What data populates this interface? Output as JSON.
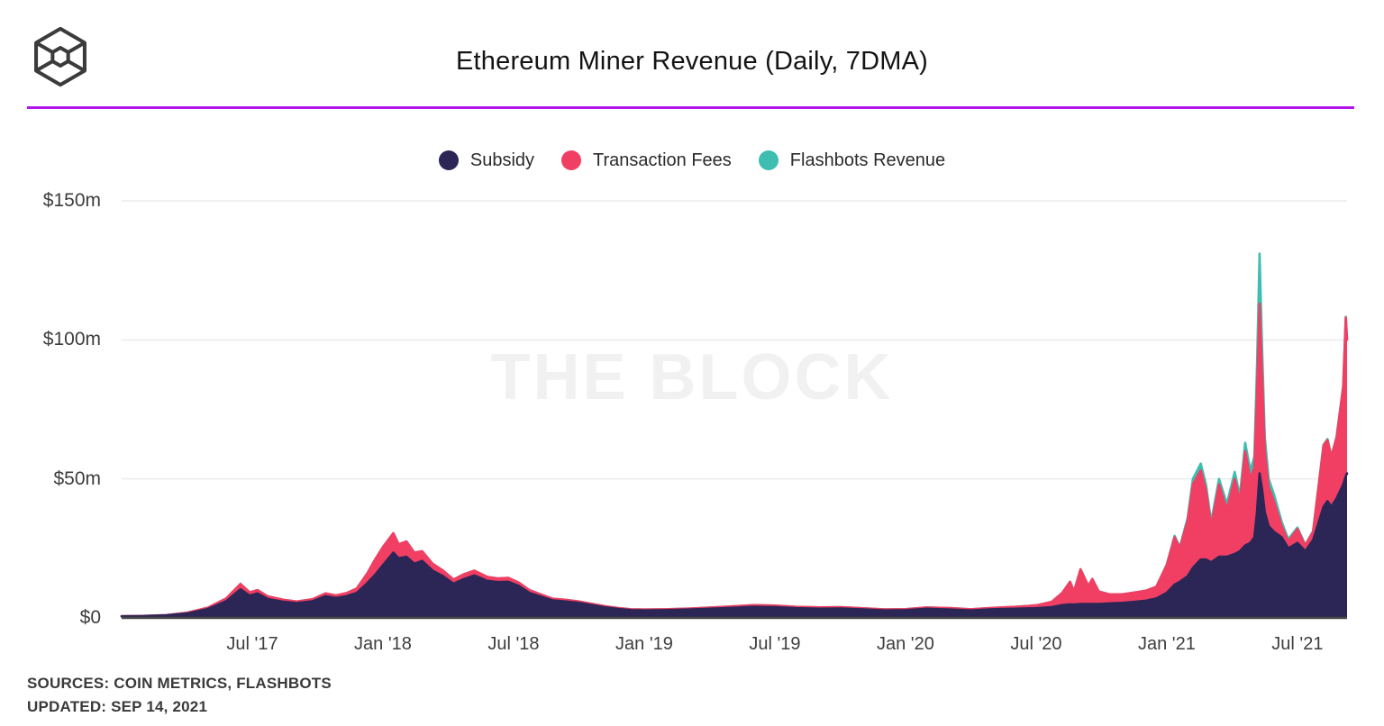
{
  "header": {
    "title": "Ethereum Miner Revenue (Daily, 7DMA)",
    "logo_icon": "the-block-cube-logo",
    "accent_color": "#b316eb"
  },
  "legend": {
    "items": [
      {
        "label": "Subsidy",
        "color": "#2c2657"
      },
      {
        "label": "Transaction Fees",
        "color": "#f13f63"
      },
      {
        "label": "Flashbots Revenue",
        "color": "#3ebdb1"
      }
    ]
  },
  "watermark": "THE BLOCK",
  "footer": {
    "sources": "SOURCES: COIN METRICS, FLASHBOTS",
    "updated": "UPDATED: SEP 14, 2021"
  },
  "chart_data": {
    "type": "area",
    "stacked": true,
    "title": "Ethereum Miner Revenue (Daily, 7DMA)",
    "units": "$m (USD millions per day)",
    "grid": "horizontal",
    "legend_position": "top-center",
    "ylim": [
      0,
      150
    ],
    "y_ticks": [
      {
        "label": "$150m",
        "value": 150
      },
      {
        "label": "$100m",
        "value": 100
      },
      {
        "label": "$50m",
        "value": 50
      },
      {
        "label": "$0",
        "value": 0
      }
    ],
    "x_ticks": [
      {
        "label": "Jul '17",
        "value": 2017.5
      },
      {
        "label": "Jan '18",
        "value": 2018.0
      },
      {
        "label": "Jul '18",
        "value": 2018.5
      },
      {
        "label": "Jan '19",
        "value": 2019.0
      },
      {
        "label": "Jul '19",
        "value": 2019.5
      },
      {
        "label": "Jan '20",
        "value": 2020.0
      },
      {
        "label": "Jul '20",
        "value": 2020.5
      },
      {
        "label": "Jan '21",
        "value": 2021.0
      },
      {
        "label": "Jul '21",
        "value": 2021.5
      }
    ],
    "xlim": [
      2017.0,
      2021.69
    ],
    "x": [
      2017.0,
      2017.08,
      2017.17,
      2017.25,
      2017.33,
      2017.4,
      2017.455,
      2017.49,
      2017.52,
      2017.56,
      2017.62,
      2017.67,
      2017.73,
      2017.78,
      2017.82,
      2017.86,
      2017.9,
      2017.94,
      2017.97,
      2018.0,
      2018.04,
      2018.06,
      2018.09,
      2018.12,
      2018.15,
      2018.19,
      2018.23,
      2018.27,
      2018.31,
      2018.35,
      2018.4,
      2018.44,
      2018.48,
      2018.52,
      2018.56,
      2018.6,
      2018.65,
      2018.7,
      2018.75,
      2018.8,
      2018.85,
      2018.9,
      2018.95,
      2019.0,
      2019.08,
      2019.17,
      2019.25,
      2019.33,
      2019.42,
      2019.5,
      2019.58,
      2019.67,
      2019.75,
      2019.83,
      2019.92,
      2020.0,
      2020.08,
      2020.17,
      2020.25,
      2020.33,
      2020.42,
      2020.5,
      2020.56,
      2020.6,
      2020.63,
      2020.645,
      2020.67,
      2020.7,
      2020.715,
      2020.74,
      2020.78,
      2020.83,
      2020.88,
      2020.92,
      2020.96,
      2021.0,
      2021.03,
      2021.05,
      2021.08,
      2021.1,
      2021.13,
      2021.15,
      2021.17,
      2021.2,
      2021.23,
      2021.26,
      2021.28,
      2021.3,
      2021.32,
      2021.335,
      2021.345,
      2021.355,
      2021.365,
      2021.375,
      2021.39,
      2021.41,
      2021.44,
      2021.465,
      2021.5,
      2021.53,
      2021.56,
      2021.6,
      2021.615,
      2021.63,
      2021.65,
      2021.675,
      2021.685,
      2021.69
    ],
    "series": [
      {
        "name": "Subsidy",
        "color": "#2c2657",
        "values": [
          0.55,
          0.65,
          0.9,
          1.6,
          3.2,
          6.0,
          10.3,
          8.0,
          8.8,
          6.8,
          5.8,
          5.3,
          6.0,
          7.8,
          7.2,
          7.8,
          9.0,
          12.5,
          15.5,
          19.0,
          23.5,
          21.5,
          22.0,
          19.5,
          20.5,
          17.0,
          15.0,
          12.3,
          14.0,
          15.3,
          13.3,
          12.9,
          13.0,
          11.5,
          9.0,
          7.8,
          6.3,
          5.9,
          5.4,
          4.6,
          3.8,
          3.2,
          2.8,
          2.7,
          2.8,
          3.0,
          3.3,
          3.6,
          4.0,
          3.9,
          3.5,
          3.3,
          3.4,
          3.1,
          2.7,
          2.8,
          3.3,
          3.0,
          2.7,
          3.1,
          3.3,
          3.5,
          3.9,
          4.6,
          4.9,
          4.8,
          5.0,
          5.0,
          5.0,
          5.0,
          5.2,
          5.4,
          5.8,
          6.2,
          7.0,
          9.0,
          12.0,
          13.0,
          15.0,
          18.0,
          21.0,
          21.0,
          20.0,
          22.0,
          22.0,
          23.0,
          24.0,
          26.0,
          27.0,
          29.0,
          38.0,
          52.0,
          46.0,
          38.0,
          33.0,
          31.0,
          29.0,
          25.0,
          27.0,
          24.0,
          28.0,
          40.0,
          42.0,
          40.0,
          43.0,
          48.0,
          51.0,
          52.0
        ]
      },
      {
        "name": "Transaction Fees",
        "color": "#f13f63",
        "values": [
          0.05,
          0.07,
          0.1,
          0.25,
          0.5,
          1.0,
          1.9,
          1.2,
          1.2,
          0.9,
          0.7,
          0.6,
          0.7,
          1.0,
          0.9,
          1.1,
          1.6,
          3.5,
          5.5,
          6.5,
          7.0,
          5.0,
          5.5,
          4.0,
          3.5,
          2.5,
          2.0,
          1.5,
          1.7,
          1.7,
          1.4,
          1.3,
          1.4,
          1.2,
          1.0,
          0.8,
          0.6,
          0.6,
          0.5,
          0.45,
          0.4,
          0.35,
          0.3,
          0.3,
          0.3,
          0.35,
          0.4,
          0.5,
          0.6,
          0.55,
          0.5,
          0.5,
          0.45,
          0.4,
          0.35,
          0.35,
          0.45,
          0.55,
          0.4,
          0.5,
          0.7,
          1.0,
          1.9,
          4.4,
          8.1,
          4.7,
          12.5,
          6.5,
          9.0,
          4.5,
          3.3,
          3.1,
          3.4,
          3.6,
          4.2,
          10.0,
          17.0,
          12.0,
          20.0,
          30.0,
          32.0,
          25.0,
          13.0,
          26.0,
          17.0,
          27.0,
          18.0,
          34.0,
          23.0,
          25.0,
          42.0,
          61.0,
          40.0,
          22.0,
          14.0,
          11.0,
          4.0,
          2.5,
          5.0,
          2.0,
          3.0,
          22.0,
          22.0,
          18.0,
          22.0,
          35.0,
          57.0,
          48.0
        ]
      },
      {
        "name": "Flashbots Revenue",
        "color": "#3ebdb1",
        "values": [
          0,
          0,
          0,
          0,
          0,
          0,
          0,
          0,
          0,
          0,
          0,
          0,
          0,
          0,
          0,
          0,
          0,
          0,
          0,
          0,
          0,
          0,
          0,
          0,
          0,
          0,
          0,
          0,
          0,
          0,
          0,
          0,
          0,
          0,
          0,
          0,
          0,
          0,
          0,
          0,
          0,
          0,
          0,
          0,
          0,
          0,
          0,
          0,
          0,
          0,
          0,
          0,
          0,
          0,
          0,
          0,
          0,
          0,
          0,
          0,
          0,
          0,
          0,
          0,
          0,
          0,
          0,
          0,
          0,
          0,
          0,
          0,
          0,
          0,
          0,
          0.2,
          0.5,
          0.5,
          1.0,
          2.0,
          2.5,
          2.0,
          1.5,
          2.0,
          2.0,
          2.5,
          2.0,
          3.0,
          3.0,
          4.0,
          10.0,
          18.0,
          10.0,
          5.0,
          3.0,
          2.5,
          1.5,
          0.8,
          0.5,
          0.3,
          0.2,
          0.3,
          0.3,
          0.2,
          0.2,
          0.3,
          0.3,
          0.3
        ]
      }
    ],
    "annotations": {
      "peak_total_value": 131,
      "peak_total_date": 2021.355,
      "axis_line_color": "#454545",
      "gridline_color": "#ececec"
    }
  }
}
